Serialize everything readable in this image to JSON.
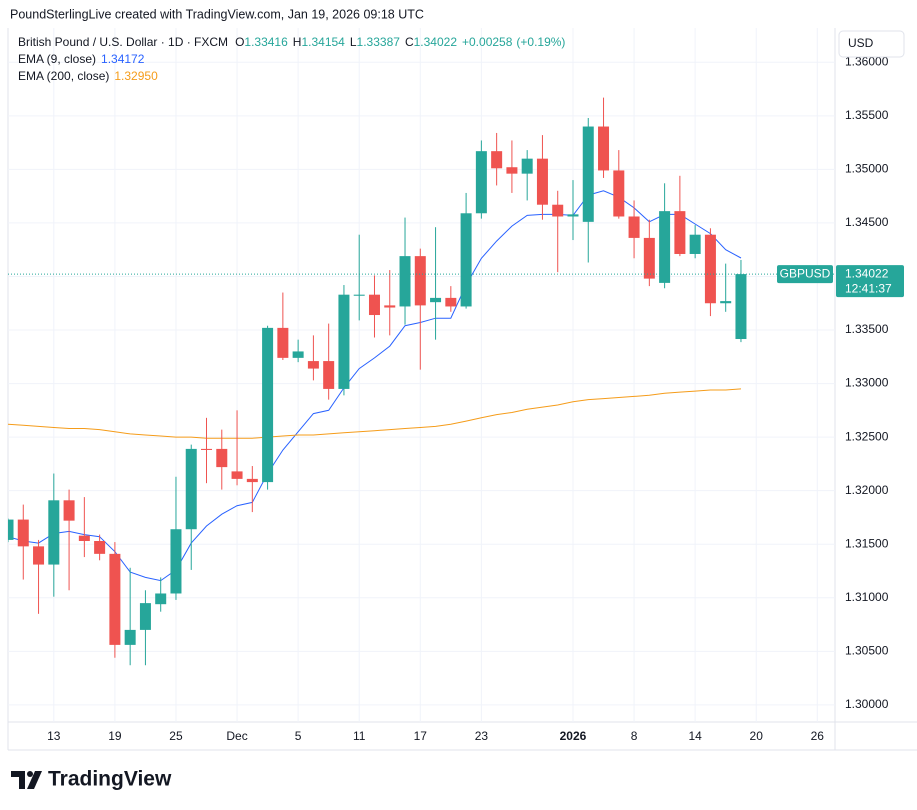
{
  "header": "PoundSterlingLive created with TradingView.com, Jan 19, 2026 09:18 UTC",
  "brand": "TradingView",
  "chart_data": {
    "type": "candlestick",
    "title": "British Pound / U.S. Dollar · 1D · FXCM",
    "ohlc_labels": [
      "O",
      "H",
      "L",
      "C"
    ],
    "change": "+0.00258",
    "change_percent": "(+0.19%)",
    "symbol": "GBPUSD",
    "currency": "USD",
    "countdown": "12:41:37",
    "up_color": "#26a69a",
    "down_color": "#ef5350",
    "grid": true,
    "x": [
      "2025-11-10",
      "2025-11-11",
      "2025-11-12",
      "2025-11-13",
      "2025-11-14",
      "2025-11-17",
      "2025-11-18",
      "2025-11-19",
      "2025-11-20",
      "2025-11-21",
      "2025-11-24",
      "2025-11-25",
      "2025-11-26",
      "2025-11-27",
      "2025-11-28",
      "2025-12-01",
      "2025-12-02",
      "2025-12-03",
      "2025-12-04",
      "2025-12-05",
      "2025-12-08",
      "2025-12-09",
      "2025-12-10",
      "2025-12-11",
      "2025-12-12",
      "2025-12-15",
      "2025-12-16",
      "2025-12-17",
      "2025-12-18",
      "2025-12-19",
      "2025-12-22",
      "2025-12-23",
      "2025-12-24",
      "2025-12-26",
      "2025-12-29",
      "2025-12-30",
      "2025-12-31",
      "2026-01-02",
      "2026-01-05",
      "2026-01-06",
      "2026-01-07",
      "2026-01-08",
      "2026-01-09",
      "2026-01-12",
      "2026-01-13",
      "2026-01-14",
      "2026-01-15",
      "2026-01-16",
      "2026-01-19"
    ],
    "open": [
      1.3154,
      1.3173,
      1.3148,
      1.3131,
      1.3191,
      1.3158,
      1.3153,
      1.3141,
      1.3056,
      1.307,
      1.3094,
      1.3104,
      1.3164,
      1.3239,
      1.3239,
      1.3218,
      1.3211,
      1.3208,
      1.3352,
      1.3324,
      1.3321,
      1.3321,
      1.3295,
      1.3382,
      1.3383,
      1.3373,
      1.3372,
      1.3419,
      1.3376,
      1.338,
      1.3372,
      1.3459,
      1.3517,
      1.3502,
      1.3496,
      1.351,
      1.3467,
      1.3456,
      1.3451,
      1.354,
      1.3499,
      1.3456,
      1.3436,
      1.3394,
      1.3461,
      1.3421,
      1.3439,
      1.3375,
      1.33416
    ],
    "high": [
      1.3174,
      1.3187,
      1.3154,
      1.3216,
      1.3201,
      1.3194,
      1.3159,
      1.3152,
      1.3128,
      1.3107,
      1.3119,
      1.3213,
      1.3243,
      1.3268,
      1.3257,
      1.3275,
      1.3223,
      1.3354,
      1.3385,
      1.3341,
      1.3345,
      1.3356,
      1.3392,
      1.3439,
      1.3401,
      1.3406,
      1.3455,
      1.3426,
      1.3446,
      1.3391,
      1.3478,
      1.3527,
      1.3534,
      1.3527,
      1.3518,
      1.3532,
      1.348,
      1.349,
      1.3548,
      1.3567,
      1.3518,
      1.3471,
      1.3453,
      1.3487,
      1.3494,
      1.3448,
      1.3445,
      1.3412,
      1.34154
    ],
    "low": [
      1.3152,
      1.3117,
      1.3085,
      1.3101,
      1.3107,
      1.3138,
      1.3135,
      1.3044,
      1.3037,
      1.3037,
      1.3087,
      1.3098,
      1.3126,
      1.3207,
      1.3201,
      1.3205,
      1.318,
      1.3201,
      1.3322,
      1.332,
      1.3303,
      1.3285,
      1.3289,
      1.3359,
      1.3343,
      1.3345,
      1.3355,
      1.3313,
      1.3341,
      1.3367,
      1.337,
      1.3454,
      1.3485,
      1.3478,
      1.3471,
      1.3453,
      1.3404,
      1.3434,
      1.3413,
      1.3492,
      1.3454,
      1.3417,
      1.3391,
      1.3389,
      1.3419,
      1.3417,
      1.3363,
      1.3367,
      1.33387
    ],
    "close": [
      1.3173,
      1.3148,
      1.3131,
      1.3191,
      1.3172,
      1.3153,
      1.3141,
      1.3056,
      1.307,
      1.3095,
      1.3104,
      1.3164,
      1.3239,
      1.3238,
      1.3222,
      1.3211,
      1.3208,
      1.3352,
      1.3324,
      1.333,
      1.3314,
      1.3295,
      1.3383,
      1.3383,
      1.3364,
      1.3371,
      1.3419,
      1.3373,
      1.338,
      1.3372,
      1.3459,
      1.3517,
      1.3501,
      1.3496,
      1.351,
      1.3467,
      1.3456,
      1.3458,
      1.354,
      1.3499,
      1.3456,
      1.3436,
      1.3398,
      1.3461,
      1.3421,
      1.3439,
      1.3375,
      1.3377,
      1.34022
    ],
    "series": [
      {
        "name": "EMA (9, close)",
        "color": "#2962ff",
        "values": [
          1.3157,
          1.3153,
          1.3151,
          1.316,
          1.3162,
          1.3159,
          1.3157,
          1.3143,
          1.3124,
          1.3119,
          1.3116,
          1.3126,
          1.3151,
          1.3167,
          1.3178,
          1.3186,
          1.3189,
          1.3216,
          1.3238,
          1.3255,
          1.3272,
          1.3275,
          1.3296,
          1.3314,
          1.3324,
          1.3335,
          1.3354,
          1.3357,
          1.3361,
          1.3361,
          1.3392,
          1.3417,
          1.3433,
          1.3447,
          1.3457,
          1.3458,
          1.3458,
          1.3457,
          1.3476,
          1.348,
          1.3474,
          1.3464,
          1.3451,
          1.3458,
          1.3458,
          1.3449,
          1.344,
          1.3425,
          1.34172
        ]
      },
      {
        "name": "EMA (200, close)",
        "color": "#f59c1a",
        "values": [
          1.3262,
          1.3261,
          1.326,
          1.3259,
          1.3258,
          1.3258,
          1.3257,
          1.3255,
          1.3253,
          1.3252,
          1.3251,
          1.325,
          1.325,
          1.3249,
          1.3249,
          1.3249,
          1.3249,
          1.325,
          1.3251,
          1.3252,
          1.3252,
          1.3253,
          1.3254,
          1.3255,
          1.3256,
          1.3257,
          1.3258,
          1.3259,
          1.326,
          1.3262,
          1.3265,
          1.3268,
          1.3271,
          1.3273,
          1.3276,
          1.3278,
          1.328,
          1.3283,
          1.3285,
          1.3286,
          1.3287,
          1.3288,
          1.3289,
          1.3291,
          1.3292,
          1.3293,
          1.3294,
          1.3294,
          1.3295
        ],
        "value_labels": [
          null,
          null,
          null,
          null,
          null,
          null,
          null,
          null,
          null,
          null,
          null,
          null,
          null,
          null,
          null,
          null,
          null,
          null,
          null,
          null,
          null,
          null,
          null,
          null,
          null,
          null,
          null,
          null,
          null,
          null,
          null,
          null,
          null,
          null,
          null,
          null,
          null,
          null,
          null,
          null,
          null,
          null,
          null,
          null,
          null,
          null,
          null,
          null,
          "1.32950"
        ]
      }
    ],
    "ylim": [
      1.2984,
      1.3632
    ],
    "yticks": [
      {
        "value": 1.3,
        "label": "1.30000"
      },
      {
        "value": 1.305,
        "label": "1.30500"
      },
      {
        "value": 1.31,
        "label": "1.31000"
      },
      {
        "value": 1.315,
        "label": "1.31500"
      },
      {
        "value": 1.32,
        "label": "1.32000"
      },
      {
        "value": 1.325,
        "label": "1.32500"
      },
      {
        "value": 1.33,
        "label": "1.33000"
      },
      {
        "value": 1.335,
        "label": "1.33500"
      },
      {
        "value": 1.34,
        "label": "1.34000"
      },
      {
        "value": 1.345,
        "label": "1.34500"
      },
      {
        "value": 1.35,
        "label": "1.35000"
      },
      {
        "value": 1.355,
        "label": "1.35500"
      },
      {
        "value": 1.36,
        "label": "1.36000"
      }
    ],
    "xticks": [
      {
        "value": "2025-11-13",
        "label": "13"
      },
      {
        "value": "2025-11-19",
        "label": "19"
      },
      {
        "value": "2025-11-25",
        "label": "25"
      },
      {
        "value": "2025-12-01",
        "label": "Dec"
      },
      {
        "value": "2025-12-05",
        "label": "5"
      },
      {
        "value": "2025-12-11",
        "label": "11"
      },
      {
        "value": "2025-12-17",
        "label": "17"
      },
      {
        "value": "2025-12-23",
        "label": "23"
      },
      {
        "value": "2026-01-02",
        "label": "2026"
      },
      {
        "value": "2026-01-08",
        "label": "8"
      },
      {
        "value": "2026-01-14",
        "label": "14"
      },
      {
        "value": "2026-01-20",
        "label": "20"
      },
      {
        "value": "2026-01-26",
        "label": "26"
      }
    ]
  }
}
